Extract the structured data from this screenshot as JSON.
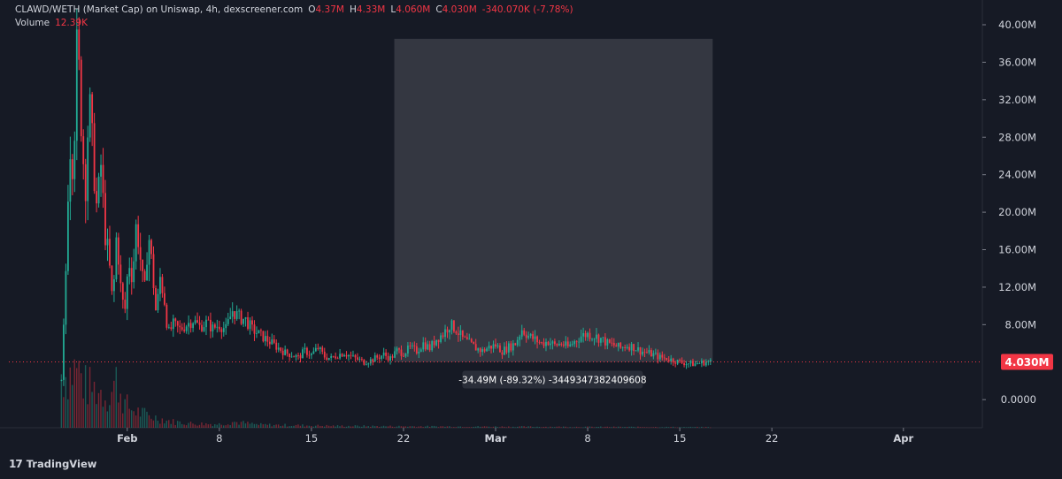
{
  "legend": {
    "title": "CLAWD/WETH (Market Cap) on Uniswap, 4h, dexscreener.com",
    "o_label": "O",
    "o_value": "4.37M",
    "h_label": "H",
    "h_value": "4.33M",
    "l_label": "L",
    "l_value": "4.060M",
    "c_label": "C",
    "c_value": "4.030M",
    "change": "-340.070K (-7.78%)",
    "volume_label": "Volume",
    "volume_value": "12.39K"
  },
  "branding": {
    "logo": "17",
    "name": "TradingView"
  },
  "colors": {
    "background": "#161a25",
    "up": "#22ab94",
    "down": "#f23645",
    "axis_text": "#d1d4dc",
    "price_tag": "#f23645",
    "measure_box": "#3a3d46"
  },
  "chart_data": {
    "type": "candlestick",
    "ylim": [
      -3.0,
      40.0
    ],
    "y_ticks": [
      "40.00M",
      "36.00M",
      "32.00M",
      "28.00M",
      "24.00M",
      "20.00M",
      "16.00M",
      "12.00M",
      "8.00M",
      "0.0000"
    ],
    "y_tick_values": [
      40,
      36,
      32,
      28,
      24,
      20,
      16,
      12,
      8,
      0
    ],
    "x_ticks": [
      "Feb",
      "8",
      "15",
      "22",
      "Mar",
      "8",
      "15",
      "22",
      "Apr"
    ],
    "x_tick_days": [
      32,
      39,
      46,
      53,
      60,
      67,
      74,
      81,
      91
    ],
    "x_range_days": [
      23,
      97
    ],
    "current_price": {
      "value": 4.03,
      "label": "4.030M"
    },
    "measure": {
      "from_day": 52.3,
      "to_day": 76.5,
      "from_value": 38.5,
      "to_value": 4.03,
      "label": "-34.49M (-89.32%) -3449347382409608"
    },
    "price_path": [
      [
        27.0,
        2.0
      ],
      [
        27.3,
        12.0
      ],
      [
        27.6,
        28.0
      ],
      [
        27.9,
        25.0
      ],
      [
        28.2,
        38.5
      ],
      [
        28.5,
        30.0
      ],
      [
        28.8,
        22.0
      ],
      [
        29.1,
        32.0
      ],
      [
        29.4,
        26.0
      ],
      [
        29.7,
        20.0
      ],
      [
        30.0,
        25.0
      ],
      [
        30.3,
        18.0
      ],
      [
        30.6,
        15.0
      ],
      [
        30.9,
        10.0
      ],
      [
        31.2,
        18.0
      ],
      [
        31.5,
        12.0
      ],
      [
        31.8,
        9.0
      ],
      [
        32.1,
        15.0
      ],
      [
        32.4,
        13.0
      ],
      [
        32.7,
        19.0
      ],
      [
        33.0,
        15.0
      ],
      [
        33.3,
        11.0
      ],
      [
        33.6,
        18.0
      ],
      [
        33.9,
        14.0
      ],
      [
        34.2,
        9.0
      ],
      [
        34.5,
        13.0
      ],
      [
        34.8,
        11.0
      ],
      [
        35.1,
        7.0
      ],
      [
        35.5,
        8.0
      ],
      [
        36.0,
        7.5
      ],
      [
        36.5,
        8.0
      ],
      [
        37.0,
        8.5
      ],
      [
        37.5,
        7.8
      ],
      [
        38.0,
        8.2
      ],
      [
        38.5,
        7.6
      ],
      [
        39.0,
        8.0
      ],
      [
        39.5,
        7.5
      ],
      [
        40.0,
        9.5
      ],
      [
        40.5,
        8.8
      ],
      [
        41.0,
        8.5
      ],
      [
        41.5,
        7.5
      ],
      [
        42.0,
        7.0
      ],
      [
        42.5,
        6.5
      ],
      [
        43.0,
        6.0
      ],
      [
        43.5,
        5.5
      ],
      [
        44.0,
        5.0
      ],
      [
        44.5,
        4.8
      ],
      [
        45.0,
        4.5
      ],
      [
        45.5,
        5.2
      ],
      [
        46.0,
        4.8
      ],
      [
        46.5,
        5.5
      ],
      [
        47.0,
        4.6
      ],
      [
        47.5,
        4.4
      ],
      [
        48.0,
        4.8
      ],
      [
        48.5,
        5.0
      ],
      [
        49.0,
        4.6
      ],
      [
        49.5,
        4.3
      ],
      [
        50.0,
        4.0
      ],
      [
        50.5,
        4.2
      ],
      [
        51.0,
        4.5
      ],
      [
        51.5,
        4.8
      ],
      [
        52.0,
        4.4
      ],
      [
        52.5,
        5.2
      ],
      [
        53.0,
        5.0
      ],
      [
        53.5,
        5.5
      ],
      [
        54.0,
        5.2
      ],
      [
        54.5,
        6.0
      ],
      [
        55.0,
        5.5
      ],
      [
        55.5,
        6.5
      ],
      [
        56.0,
        7.0
      ],
      [
        56.5,
        8.0
      ],
      [
        57.0,
        7.5
      ],
      [
        57.5,
        6.5
      ],
      [
        58.0,
        6.0
      ],
      [
        58.5,
        5.5
      ],
      [
        59.0,
        5.2
      ],
      [
        59.5,
        5.6
      ],
      [
        60.0,
        5.8
      ],
      [
        60.5,
        5.2
      ],
      [
        61.0,
        5.6
      ],
      [
        61.5,
        6.0
      ],
      [
        62.0,
        7.5
      ],
      [
        62.5,
        6.8
      ],
      [
        63.0,
        6.4
      ],
      [
        63.5,
        6.0
      ],
      [
        64.0,
        6.2
      ],
      [
        64.5,
        5.8
      ],
      [
        65.0,
        6.0
      ],
      [
        65.5,
        5.6
      ],
      [
        66.0,
        6.2
      ],
      [
        66.5,
        6.8
      ],
      [
        67.0,
        7.0
      ],
      [
        67.5,
        6.8
      ],
      [
        68.0,
        6.5
      ],
      [
        68.5,
        6.0
      ],
      [
        69.0,
        5.8
      ],
      [
        69.5,
        5.5
      ],
      [
        70.0,
        5.8
      ],
      [
        70.5,
        5.6
      ],
      [
        71.0,
        5.2
      ],
      [
        71.5,
        5.0
      ],
      [
        72.0,
        4.8
      ],
      [
        72.5,
        4.5
      ],
      [
        73.0,
        4.4
      ],
      [
        73.5,
        4.2
      ],
      [
        74.0,
        4.0
      ],
      [
        74.5,
        3.9
      ],
      [
        75.0,
        3.8
      ],
      [
        75.5,
        3.9
      ],
      [
        76.0,
        4.0
      ],
      [
        76.4,
        4.03
      ]
    ],
    "volume_path": [
      [
        27.0,
        9.0
      ],
      [
        27.6,
        9.0
      ],
      [
        28.2,
        10.0
      ],
      [
        28.8,
        7.0
      ],
      [
        29.4,
        6.5
      ],
      [
        30.0,
        6.0
      ],
      [
        30.6,
        5.0
      ],
      [
        31.2,
        8.0
      ],
      [
        31.8,
        4.0
      ],
      [
        32.4,
        3.0
      ],
      [
        33.0,
        2.5
      ],
      [
        33.6,
        2.0
      ],
      [
        34.5,
        1.5
      ],
      [
        35.5,
        1.0
      ],
      [
        37.0,
        0.7
      ],
      [
        39.0,
        0.6
      ],
      [
        40.0,
        1.0
      ],
      [
        42.0,
        0.5
      ],
      [
        45.0,
        0.4
      ],
      [
        48.0,
        0.3
      ],
      [
        52.0,
        0.25
      ],
      [
        58.0,
        0.2
      ],
      [
        66.0,
        0.15
      ],
      [
        76.4,
        0.1
      ]
    ]
  }
}
